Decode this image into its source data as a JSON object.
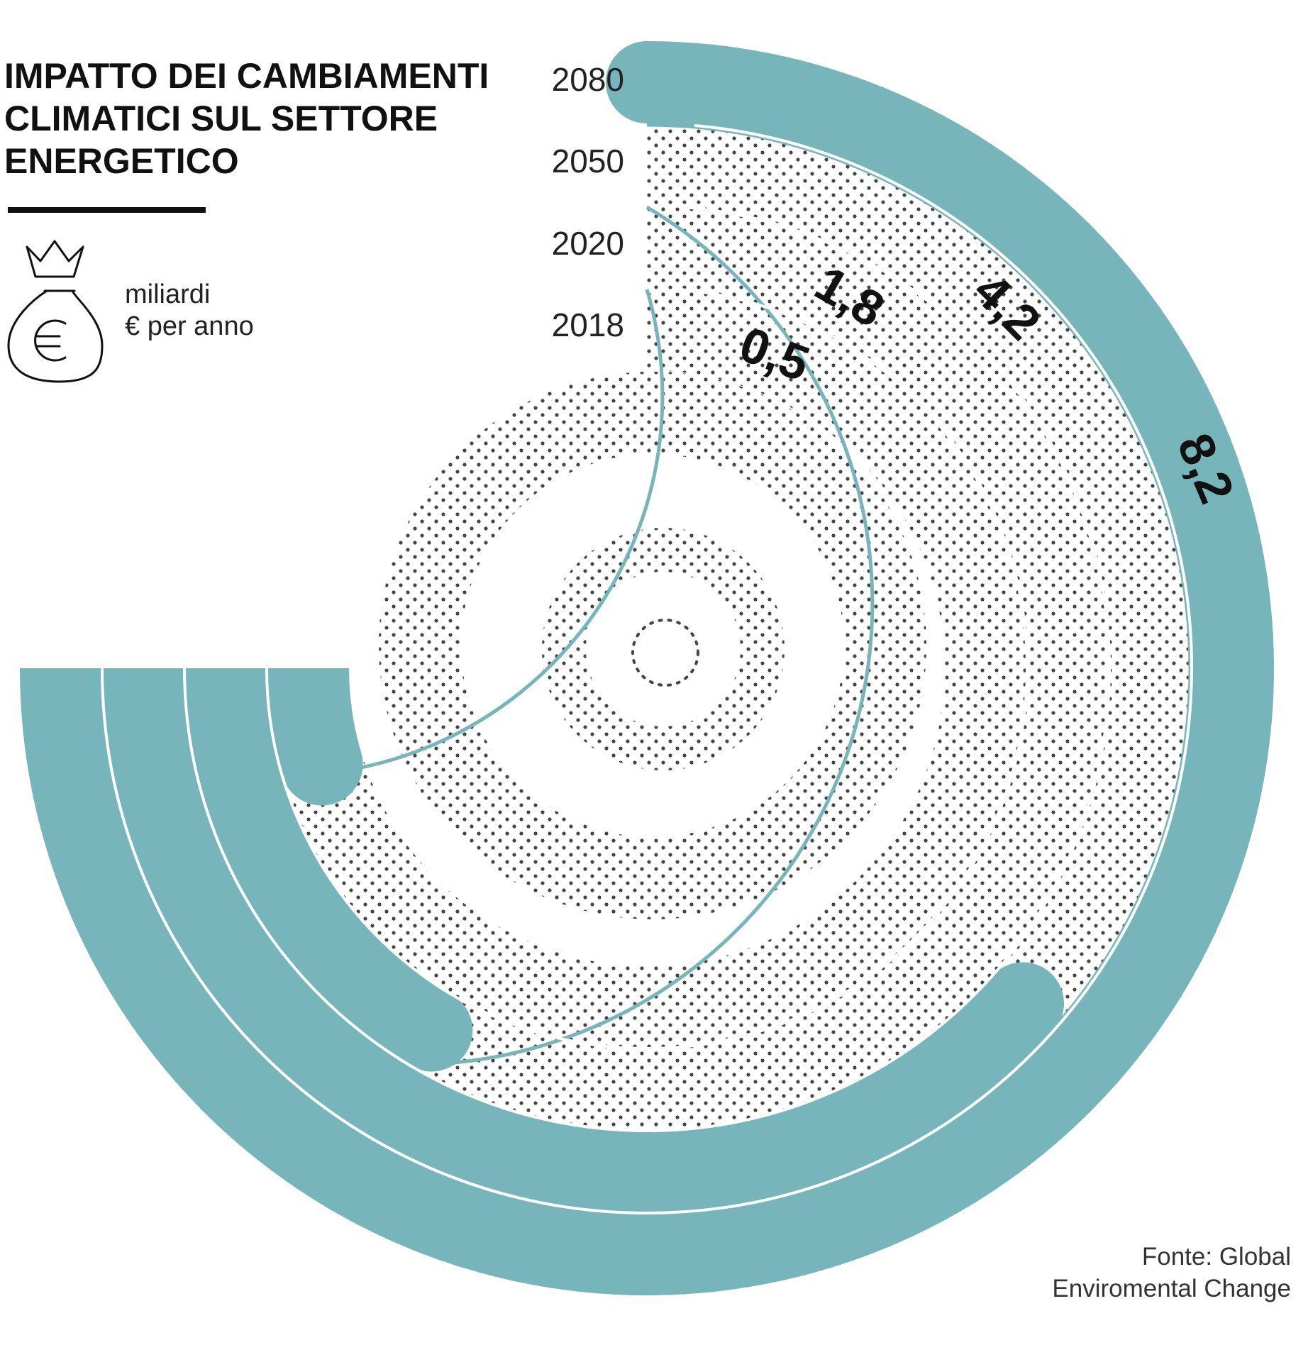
{
  "colors": {
    "accent": "#76b6bb",
    "dots": "#444444",
    "text": "#111111"
  },
  "header": {
    "title_lines": [
      "IMPATTO DEI CAMBIAMENTI",
      "CLIMATICI SUL SETTORE",
      "ENERGETICO"
    ]
  },
  "legend": {
    "icon": "money-bag-euro-icon",
    "unit_lines": [
      "miliardi",
      "€ per anno"
    ]
  },
  "source": {
    "lines": [
      "Fonte: Global",
      "Enviromental Change"
    ]
  },
  "chart_data": {
    "type": "radial-bar",
    "unit": "miliardi € per anno",
    "categories": [
      "2018",
      "2020",
      "2050",
      "2080"
    ],
    "values": [
      0.5,
      1.8,
      4.2,
      8.2
    ],
    "value_labels": [
      "0,5",
      "1,8",
      "4,2",
      "8,2"
    ]
  }
}
